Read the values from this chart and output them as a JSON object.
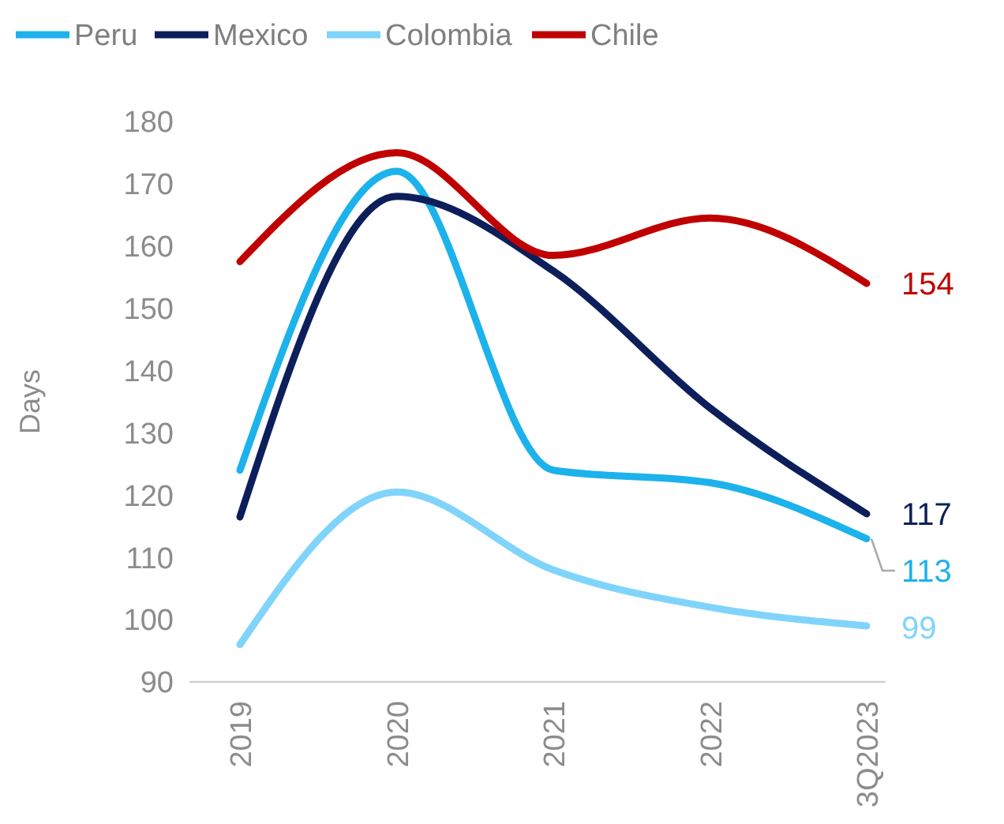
{
  "chart_data": {
    "type": "line",
    "ylabel": "Days",
    "categories": [
      "2019",
      "2020",
      "2021",
      "2022",
      "3Q2023"
    ],
    "ylim": [
      90,
      180
    ],
    "yticks": [
      90,
      100,
      110,
      120,
      130,
      140,
      150,
      160,
      170,
      180
    ],
    "grid": false,
    "legend": "top",
    "marker": "none",
    "line_style": "solid",
    "series": [
      {
        "name": "Peru",
        "color": "#1cb2ec",
        "values": [
          124,
          172,
          124,
          122,
          113
        ],
        "value_labels": [
          null,
          null,
          null,
          null,
          "113"
        ]
      },
      {
        "name": "Mexico",
        "color": "#0c1f5b",
        "values": [
          116.5,
          168,
          156,
          134,
          117
        ],
        "value_labels": [
          null,
          null,
          null,
          null,
          "117"
        ]
      },
      {
        "name": "Colombia",
        "color": "#80d4fb",
        "values": [
          96,
          120.5,
          108,
          102,
          99
        ],
        "value_labels": [
          null,
          null,
          null,
          null,
          "99"
        ]
      },
      {
        "name": "Chile",
        "color": "#c00000",
        "values": [
          157.5,
          175,
          158.5,
          164.5,
          154
        ],
        "value_labels": [
          null,
          null,
          null,
          null,
          "154"
        ]
      }
    ]
  }
}
